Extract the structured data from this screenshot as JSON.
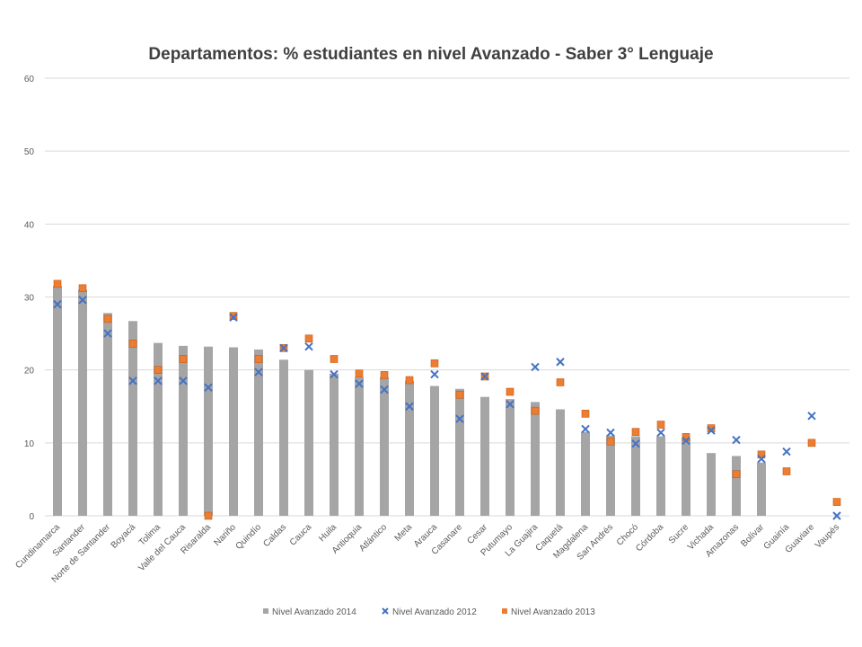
{
  "chart_data": {
    "type": "bar",
    "title": "Departamentos: % estudiantes en nivel Avanzado - Saber 3° Lenguaje",
    "xlabel": "",
    "ylabel": "",
    "ylim": [
      0,
      60
    ],
    "yticks": [
      0,
      10,
      20,
      30,
      40,
      50,
      60
    ],
    "grid": true,
    "legend_position": "bottom",
    "categories": [
      "Cundinamarca",
      "Santander",
      "Norte de Santander",
      "Boyacá",
      "Tolima",
      "Valle del Cauca",
      "Risaralda",
      "Nariño",
      "Quindío",
      "Caldas",
      "Cauca",
      "Huila",
      "Antioquia",
      "Atlántico",
      "Meta",
      "Arauca",
      "Casanare",
      "Cesar",
      "Putumayo",
      "La Guajira",
      "Caquetá",
      "Magdalena",
      "San Andrés",
      "Chocó",
      "Córdoba",
      "Sucre",
      "Vichada",
      "Amazonas",
      "Bolívar",
      "Guainía",
      "Guaviare",
      "Vaupés"
    ],
    "series": [
      {
        "name": "Nivel Avanzado 2014",
        "kind": "bar",
        "color": "#a5a5a5",
        "values": [
          31.5,
          31,
          27.8,
          26.7,
          23.7,
          23.3,
          23.2,
          23.1,
          22.8,
          21.4,
          20.0,
          19.5,
          19.0,
          19.0,
          18.5,
          17.8,
          17.4,
          16.3,
          16.0,
          15.6,
          14.6,
          11.5,
          11.0,
          10.9,
          10.9,
          10.6,
          8.6,
          8.2,
          7.3,
          null,
          null,
          null
        ]
      },
      {
        "name": "Nivel Avanzado 2012",
        "kind": "marker-x",
        "color": "#4472c4",
        "values": [
          29.0,
          29.6,
          25.0,
          18.5,
          18.5,
          18.5,
          17.6,
          27.2,
          19.7,
          23.0,
          23.2,
          19.4,
          18.1,
          17.3,
          15.0,
          19.4,
          13.3,
          19.1,
          15.3,
          20.4,
          21.1,
          11.9,
          11.4,
          9.9,
          11.4,
          10.3,
          11.7,
          10.4,
          7.8,
          8.8,
          13.7,
          0.0
        ]
      },
      {
        "name": "Nivel Avanzado 2013",
        "kind": "marker-square",
        "color": "#ed7d31",
        "values": [
          31.8,
          31.2,
          27.0,
          23.6,
          20.0,
          21.5,
          0.0,
          27.4,
          21.5,
          23.0,
          24.3,
          21.5,
          19.5,
          19.3,
          18.6,
          20.9,
          16.6,
          19.1,
          17.0,
          14.4,
          18.3,
          14.0,
          10.2,
          11.5,
          12.5,
          10.8,
          12.0,
          5.7,
          8.4,
          6.1,
          10.0,
          1.9
        ]
      }
    ]
  }
}
